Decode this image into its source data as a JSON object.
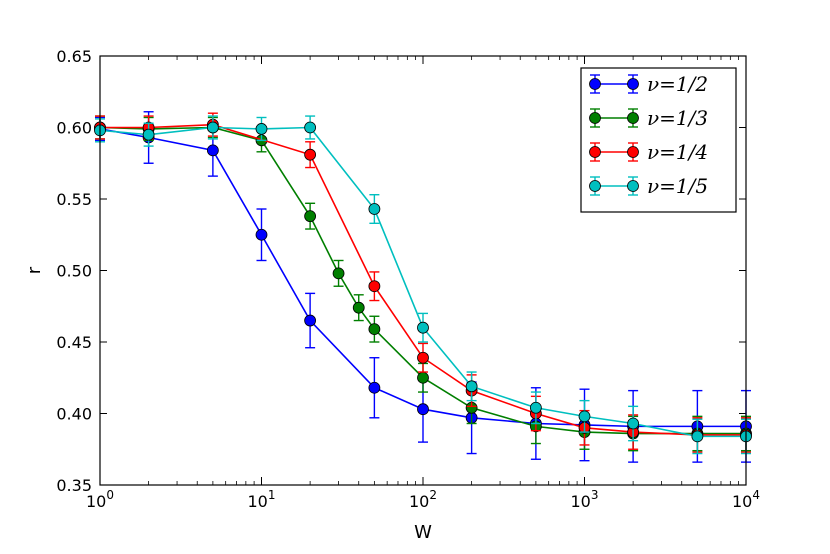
{
  "chart_data": {
    "type": "line",
    "title": "",
    "xlabel": "W",
    "ylabel": "r",
    "xscale": "log",
    "xlim": [
      1,
      10000
    ],
    "ylim": [
      0.35,
      0.65
    ],
    "grid": false,
    "legend_position": "top-right",
    "x_ticks": [
      {
        "value": 1,
        "base": "10",
        "exp": "0"
      },
      {
        "value": 10,
        "base": "10",
        "exp": "1"
      },
      {
        "value": 100,
        "base": "10",
        "exp": "2"
      },
      {
        "value": 1000,
        "base": "10",
        "exp": "3"
      },
      {
        "value": 10000,
        "base": "10",
        "exp": "4"
      }
    ],
    "y_ticks": [
      {
        "value": 0.35,
        "label": "0.35"
      },
      {
        "value": 0.4,
        "label": "0.40"
      },
      {
        "value": 0.45,
        "label": "0.45"
      },
      {
        "value": 0.5,
        "label": "0.50"
      },
      {
        "value": 0.55,
        "label": "0.55"
      },
      {
        "value": 0.6,
        "label": "0.60"
      },
      {
        "value": 0.65,
        "label": "0.65"
      }
    ],
    "series": [
      {
        "name": "ν=1/2",
        "color": "#0000ff",
        "points": [
          {
            "x": 1,
            "y": 0.599,
            "err": 0.008
          },
          {
            "x": 2,
            "y": 0.593,
            "err": 0.018
          },
          {
            "x": 5,
            "y": 0.584,
            "err": 0.018
          },
          {
            "x": 10,
            "y": 0.525,
            "err": 0.018
          },
          {
            "x": 20,
            "y": 0.465,
            "err": 0.019
          },
          {
            "x": 50,
            "y": 0.418,
            "err": 0.021
          },
          {
            "x": 100,
            "y": 0.403,
            "err": 0.023
          },
          {
            "x": 200,
            "y": 0.397,
            "err": 0.025
          },
          {
            "x": 500,
            "y": 0.393,
            "err": 0.025
          },
          {
            "x": 1000,
            "y": 0.392,
            "err": 0.025
          },
          {
            "x": 2000,
            "y": 0.391,
            "err": 0.025
          },
          {
            "x": 5000,
            "y": 0.391,
            "err": 0.025
          },
          {
            "x": 10000,
            "y": 0.391,
            "err": 0.025
          }
        ]
      },
      {
        "name": "ν=1/3",
        "color": "#007f00",
        "points": [
          {
            "x": 1,
            "y": 0.6,
            "err": 0.008
          },
          {
            "x": 2,
            "y": 0.599,
            "err": 0.008
          },
          {
            "x": 5,
            "y": 0.6,
            "err": 0.007
          },
          {
            "x": 10,
            "y": 0.591,
            "err": 0.008
          },
          {
            "x": 20,
            "y": 0.538,
            "err": 0.009
          },
          {
            "x": 30,
            "y": 0.498,
            "err": 0.009
          },
          {
            "x": 40,
            "y": 0.474,
            "err": 0.009
          },
          {
            "x": 50,
            "y": 0.459,
            "err": 0.009
          },
          {
            "x": 100,
            "y": 0.425,
            "err": 0.01
          },
          {
            "x": 200,
            "y": 0.404,
            "err": 0.011
          },
          {
            "x": 500,
            "y": 0.391,
            "err": 0.012
          },
          {
            "x": 1000,
            "y": 0.387,
            "err": 0.012
          },
          {
            "x": 2000,
            "y": 0.386,
            "err": 0.012
          },
          {
            "x": 5000,
            "y": 0.386,
            "err": 0.012
          },
          {
            "x": 10000,
            "y": 0.386,
            "err": 0.012
          }
        ]
      },
      {
        "name": "ν=1/4",
        "color": "#ff0000",
        "points": [
          {
            "x": 1,
            "y": 0.6,
            "err": 0.008
          },
          {
            "x": 2,
            "y": 0.6,
            "err": 0.008
          },
          {
            "x": 5,
            "y": 0.602,
            "err": 0.008
          },
          {
            "x": 20,
            "y": 0.581,
            "err": 0.009
          },
          {
            "x": 50,
            "y": 0.489,
            "err": 0.01
          },
          {
            "x": 100,
            "y": 0.439,
            "err": 0.01
          },
          {
            "x": 200,
            "y": 0.416,
            "err": 0.011
          },
          {
            "x": 500,
            "y": 0.4,
            "err": 0.012
          },
          {
            "x": 1000,
            "y": 0.39,
            "err": 0.012
          },
          {
            "x": 2000,
            "y": 0.387,
            "err": 0.012
          },
          {
            "x": 5000,
            "y": 0.385,
            "err": 0.012
          },
          {
            "x": 10000,
            "y": 0.385,
            "err": 0.012
          }
        ]
      },
      {
        "name": "ν=1/5",
        "color": "#00bfbf",
        "points": [
          {
            "x": 1,
            "y": 0.598,
            "err": 0.008
          },
          {
            "x": 2,
            "y": 0.595,
            "err": 0.008
          },
          {
            "x": 5,
            "y": 0.6,
            "err": 0.008
          },
          {
            "x": 10,
            "y": 0.599,
            "err": 0.008
          },
          {
            "x": 20,
            "y": 0.6,
            "err": 0.008
          },
          {
            "x": 50,
            "y": 0.543,
            "err": 0.01
          },
          {
            "x": 100,
            "y": 0.46,
            "err": 0.01
          },
          {
            "x": 200,
            "y": 0.419,
            "err": 0.01
          },
          {
            "x": 500,
            "y": 0.404,
            "err": 0.011
          },
          {
            "x": 1000,
            "y": 0.398,
            "err": 0.011
          },
          {
            "x": 2000,
            "y": 0.393,
            "err": 0.012
          },
          {
            "x": 5000,
            "y": 0.384,
            "err": 0.012
          },
          {
            "x": 10000,
            "y": 0.384,
            "err": 0.012
          }
        ]
      }
    ]
  }
}
